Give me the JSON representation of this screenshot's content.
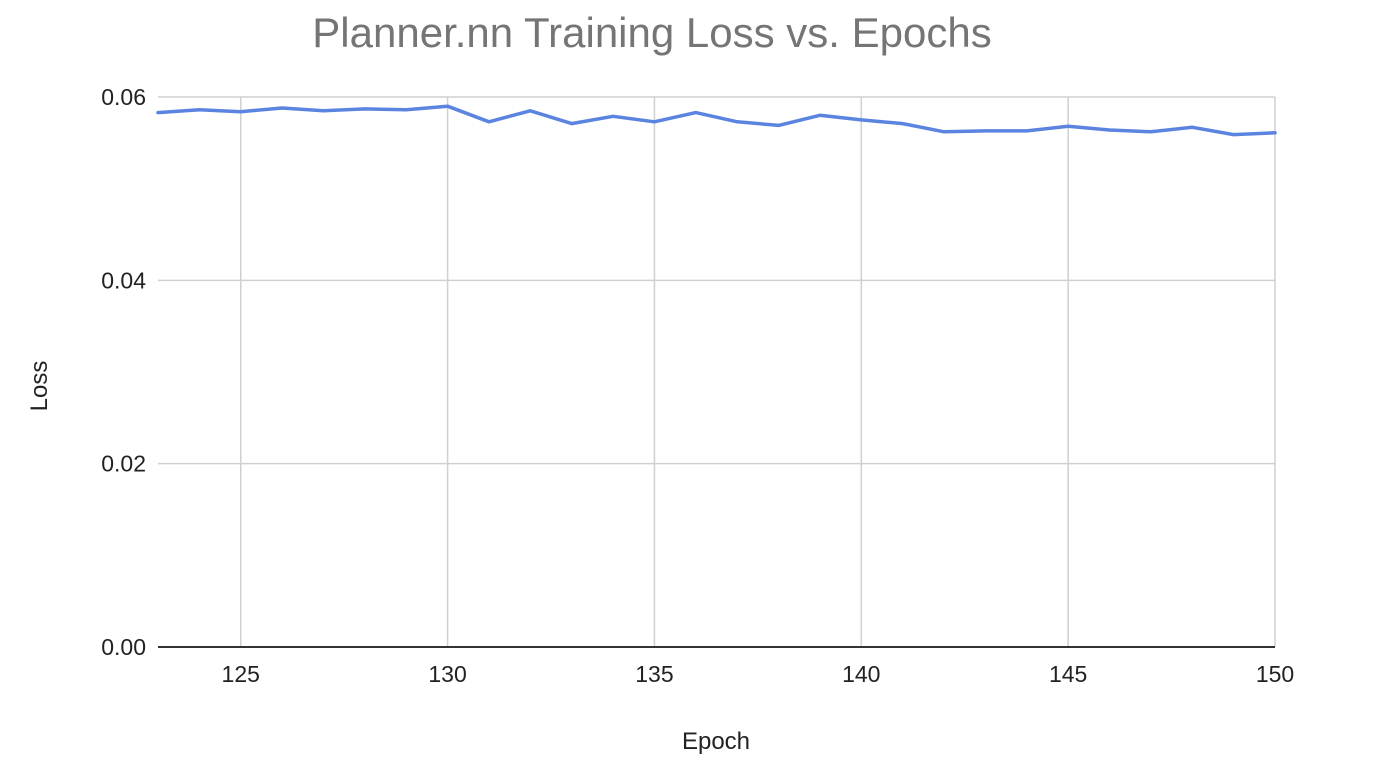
{
  "chart_data": {
    "type": "line",
    "title": "Planner.nn Training Loss vs. Epochs",
    "xlabel": "Epoch",
    "ylabel": "Loss",
    "xlim": [
      123,
      150
    ],
    "ylim": [
      0,
      0.06
    ],
    "x_ticks": [
      125,
      130,
      135,
      140,
      145,
      150
    ],
    "y_ticks": [
      0.0,
      0.02,
      0.04,
      0.06
    ],
    "y_tick_labels": [
      "0.00",
      "0.02",
      "0.04",
      "0.06"
    ],
    "grid": true,
    "legend": "none",
    "series": [
      {
        "color": "#5b84e0",
        "x": [
          123,
          124,
          125,
          126,
          127,
          128,
          129,
          130,
          131,
          132,
          133,
          134,
          135,
          136,
          137,
          138,
          139,
          140,
          141,
          142,
          143,
          144,
          145,
          146,
          147,
          148,
          149,
          150
        ],
        "y": [
          0.0583,
          0.0586,
          0.0584,
          0.0588,
          0.0585,
          0.0587,
          0.0586,
          0.059,
          0.0573,
          0.0585,
          0.0571,
          0.0579,
          0.0573,
          0.0583,
          0.0573,
          0.0569,
          0.058,
          0.0575,
          0.0571,
          0.0562,
          0.0563,
          0.0563,
          0.0568,
          0.0564,
          0.0562,
          0.0567,
          0.0559,
          0.0561
        ]
      }
    ]
  }
}
